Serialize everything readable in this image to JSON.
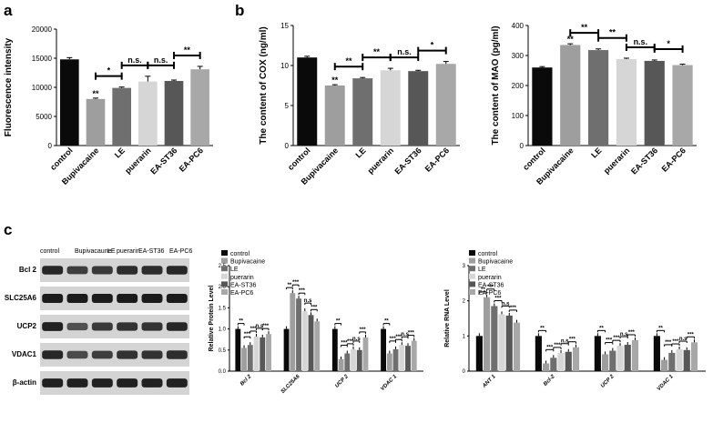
{
  "panel_labels": {
    "a": "a",
    "b": "b",
    "c": "c"
  },
  "colors": [
    "#0a0a0a",
    "#9e9e9e",
    "#6f6f6f",
    "#d6d6d6",
    "#575757",
    "#a8a8a8"
  ],
  "chart_data": [
    {
      "id": "a-fluorescence",
      "type": "bar",
      "title": "",
      "ylabel": "Fluorescence intensity",
      "categories": [
        "control",
        "Bupivacaine",
        "LE",
        "puerarin",
        "EA-ST36",
        "EA-PC6"
      ],
      "values": [
        14800,
        8000,
        9900,
        11000,
        11100,
        13100
      ],
      "errors": [
        300,
        150,
        150,
        900,
        150,
        500
      ],
      "ylim": [
        0,
        20000
      ],
      "yticks": [
        "0",
        "5000",
        "10000",
        "15000",
        "20000"
      ],
      "annotations": [
        {
          "bar": 1,
          "text": "**"
        },
        {
          "from": 1,
          "to": 2,
          "text": "*"
        },
        {
          "from": 2,
          "to": 3,
          "text": "n.s."
        },
        {
          "from": 3,
          "to": 4,
          "text": "n.s."
        },
        {
          "from": 4,
          "to": 5,
          "text": "**"
        }
      ]
    },
    {
      "id": "b-cox",
      "type": "bar",
      "ylabel": "The content of COX (ng/ml)",
      "categories": [
        "control",
        "Bupivacaine",
        "LE",
        "puerarin",
        "EA-ST36",
        "EA-PC6"
      ],
      "values": [
        11.0,
        7.5,
        8.4,
        9.4,
        9.3,
        10.2
      ],
      "errors": [
        0.15,
        0.1,
        0.1,
        0.25,
        0.1,
        0.3
      ],
      "ylim": [
        0,
        15
      ],
      "yticks": [
        "0",
        "5",
        "10",
        "15"
      ],
      "annotations": [
        {
          "bar": 1,
          "text": "**"
        },
        {
          "from": 1,
          "to": 2,
          "text": "**"
        },
        {
          "from": 2,
          "to": 3,
          "text": "**"
        },
        {
          "from": 3,
          "to": 4,
          "text": "n.s."
        },
        {
          "from": 4,
          "to": 5,
          "text": "*"
        }
      ]
    },
    {
      "id": "b-mao",
      "type": "bar",
      "ylabel": "The content of MAO (pg/ml)",
      "categories": [
        "control",
        "Bupivacaine",
        "LE",
        "puerarin",
        "EA-ST36",
        "EA-PC6"
      ],
      "values": [
        260,
        335,
        318,
        288,
        282,
        268
      ],
      "errors": [
        3,
        4,
        4,
        3,
        3,
        3
      ],
      "ylim": [
        0,
        400
      ],
      "yticks": [
        "0",
        "100",
        "200",
        "300",
        "400"
      ],
      "annotations": [
        {
          "bar": 1,
          "text": "**"
        },
        {
          "from": 1,
          "to": 2,
          "text": "**"
        },
        {
          "from": 2,
          "to": 3,
          "text": "**"
        },
        {
          "from": 3,
          "to": 4,
          "text": "n.s."
        },
        {
          "from": 4,
          "to": 5,
          "text": "*"
        }
      ]
    },
    {
      "id": "c-protein",
      "type": "bar",
      "ylabel": "Relative Protein Level",
      "legend": [
        "control",
        "Bupivacaine",
        "LE",
        "puerarin",
        "EA-ST36",
        "EA-PC6"
      ],
      "categories": [
        "Bcl 2",
        "SLC25A6",
        "UCP 2",
        "VDAC 1"
      ],
      "series_values": [
        [
          1.0,
          0.55,
          0.62,
          0.82,
          0.8,
          0.88
        ],
        [
          1.0,
          1.85,
          1.72,
          1.42,
          1.33,
          1.18
        ],
        [
          1.0,
          0.28,
          0.42,
          0.52,
          0.5,
          0.8
        ],
        [
          1.0,
          0.42,
          0.52,
          0.62,
          0.6,
          0.72
        ]
      ],
      "ylim": [
        0,
        2.5
      ],
      "yticks": [
        "0.0",
        "0.5",
        "1.0",
        "1.5",
        "2.0",
        "2.5"
      ],
      "group_sig": [
        "**",
        "***",
        "***",
        "n.s",
        "***"
      ]
    },
    {
      "id": "c-rna",
      "type": "bar",
      "ylabel": "Relative RNA Level",
      "legend": [
        "control",
        "Bupivacaine",
        "LE",
        "puerarin",
        "EA-ST36",
        "EA-PC6"
      ],
      "categories": [
        "ANT 1",
        "Bcl-2",
        "UCP 2",
        "VDAC 1"
      ],
      "series_values": [
        [
          1.0,
          2.1,
          1.85,
          1.62,
          1.58,
          1.38
        ],
        [
          1.0,
          0.22,
          0.38,
          0.52,
          0.55,
          0.68
        ],
        [
          1.0,
          0.48,
          0.58,
          0.72,
          0.75,
          0.88
        ],
        [
          1.0,
          0.32,
          0.52,
          0.62,
          0.6,
          0.82
        ]
      ],
      "ylim": [
        0,
        3
      ],
      "yticks": [
        "0",
        "1",
        "2",
        "3"
      ],
      "group_sig": [
        "**",
        "***",
        "***",
        "n.s",
        "***"
      ]
    }
  ],
  "western_blot": {
    "header": [
      "control",
      "Bupivacaune",
      "LE",
      "puerarin",
      "EA-ST36",
      "EA-PC6"
    ],
    "rows": [
      "Bcl 2",
      "SLC25A6",
      "UCP2",
      "VDAC1",
      "β-actin"
    ],
    "intensity": [
      [
        0.9,
        0.7,
        0.75,
        0.85,
        0.85,
        0.9
      ],
      [
        1.0,
        1.0,
        1.0,
        1.0,
        1.0,
        1.0
      ],
      [
        0.95,
        0.55,
        0.75,
        0.8,
        0.8,
        0.9
      ],
      [
        0.9,
        0.6,
        0.7,
        0.8,
        0.8,
        0.85
      ],
      [
        0.95,
        0.95,
        0.95,
        0.95,
        0.95,
        0.95
      ]
    ]
  }
}
